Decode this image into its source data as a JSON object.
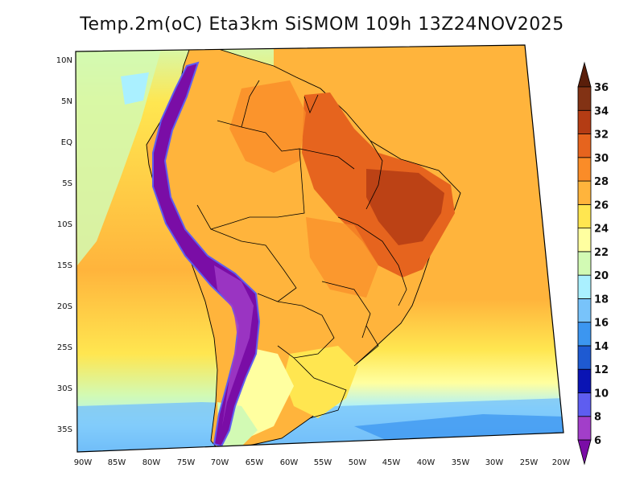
{
  "title": "Temp.2m(oC) Eta3km SiSMOM 109h 13Z24NOV2025",
  "axes": {
    "lat_labels": [
      "10N",
      "5N",
      "EQ",
      "5S",
      "10S",
      "15S",
      "20S",
      "25S",
      "30S",
      "35S"
    ],
    "lon_labels": [
      "90W",
      "85W",
      "80W",
      "75W",
      "70W",
      "65W",
      "60W",
      "55W",
      "50W",
      "45W",
      "40W",
      "35W",
      "30W",
      "25W",
      "20W"
    ]
  },
  "colorbar": {
    "labels": [
      "6",
      "8",
      "10",
      "12",
      "14",
      "16",
      "18",
      "20",
      "22",
      "24",
      "26",
      "28",
      "30",
      "32",
      "34",
      "36"
    ],
    "colors": [
      "#7a0da6",
      "#a23ec9",
      "#5e5df0",
      "#0a14b4",
      "#1e5ad2",
      "#3c96f0",
      "#78c3fa",
      "#aaf0ff",
      "#d2fab4",
      "#ffffa0",
      "#ffe650",
      "#ffb43c",
      "#fa8c28",
      "#e6641e",
      "#b43c14",
      "#823214",
      "#5a1e0a"
    ]
  }
}
